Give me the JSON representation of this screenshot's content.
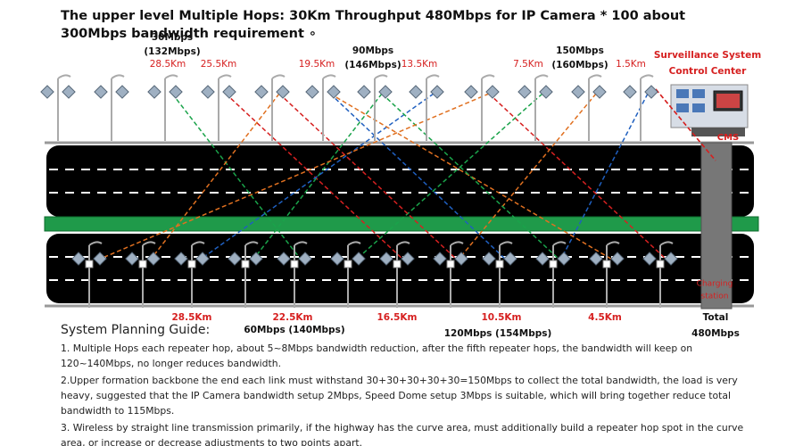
{
  "title": "The upper level Multiple Hops: 30Km Throughput 480Mbps for IP Camera * 100 about 300Mbps bandwidth requirement ∘",
  "top_labels": [
    "30Mbps",
    "(132Mbps)",
    "28.5Km",
    "25.5Km",
    "19.5Km",
    "90Mbps",
    "(146Mbps)",
    "13.5Km",
    "7.5Km",
    "150Mbps",
    "(160Mbps)",
    "1.5Km"
  ],
  "control_center": {
    "line1": "Surveillance System",
    "line2": "Control Center",
    "cms": "CMS"
  },
  "station": {
    "line1": "Charging",
    "line2": "station"
  },
  "bottom_labels": [
    "28.5Km",
    "60Mbps (140Mbps)",
    "22.5Km",
    "16.5Km",
    "10.5Km",
    "120Mbps (154Mbps)",
    "4.5Km",
    "Total",
    "480Mbps"
  ],
  "guide": {
    "heading": "System Planning Guide:",
    "items": [
      "1. Multiple Hops each repeater hop, about 5~8Mbps bandwidth reduction, after the fifth repeater hops, the bandwidth will keep on 120~140Mbps, no longer reduces bandwidth.",
      "2.Upper formation backbone the end each link must withstand 30+30+30+30+30=150Mbps to collect the total bandwidth, the load is very heavy, suggested that the IP Camera bandwidth setup 2Mbps, Speed Dome setup 3Mbps is suitable, which will bring together reduce total bandwidth to 115Mbps.",
      "3. Wireless by straight line transmission primarily, if the highway has the curve area, must additionally build a repeater hop spot in the curve area, or increase or decrease adjustments to two points apart."
    ]
  }
}
